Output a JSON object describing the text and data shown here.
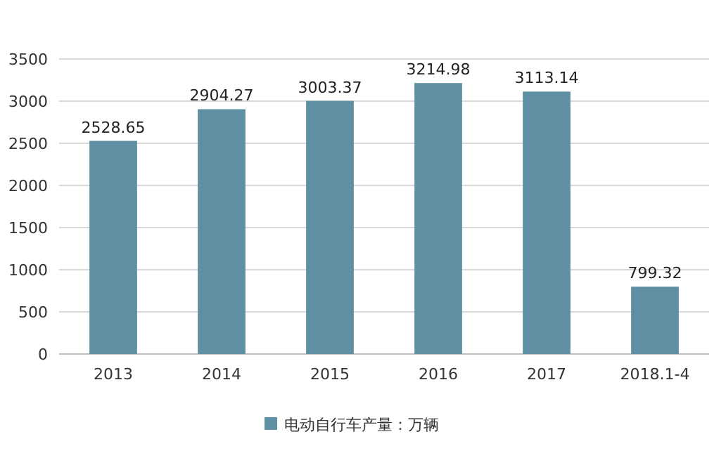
{
  "chart_data": {
    "type": "bar",
    "categories": [
      "2013",
      "2014",
      "2015",
      "2016",
      "2017",
      "2018.1-4"
    ],
    "series": [
      {
        "name": "电动自行车产量：万辆",
        "color": "#5e8fa2",
        "values": [
          2528.65,
          2904.27,
          3003.37,
          3214.98,
          3113.14,
          799.32
        ]
      }
    ],
    "ylim": [
      0,
      3500
    ],
    "yticks": [
      0,
      500,
      1000,
      1500,
      2000,
      2500,
      3000,
      3500
    ],
    "grid": "y",
    "legend": "bottom",
    "data_labels": true
  }
}
